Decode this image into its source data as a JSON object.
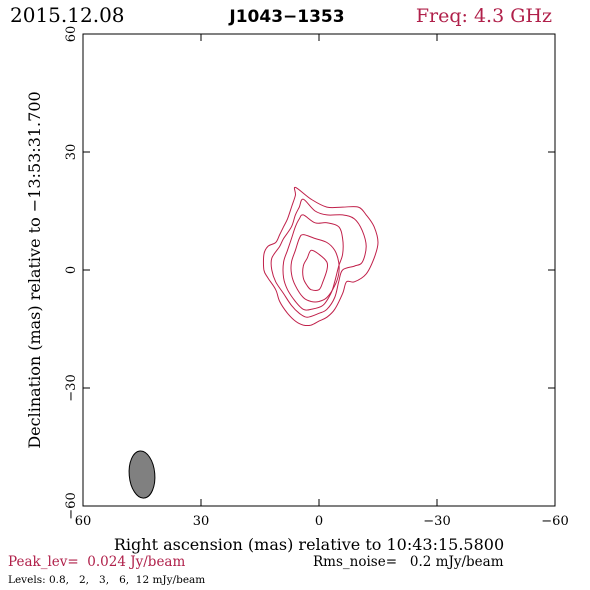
{
  "header": {
    "date": "2015.12.08",
    "source": "J1043−1353",
    "freq": "Freq: 4.3 GHz"
  },
  "footer": {
    "peak": "Peak_lev=  0.024 Jy/beam",
    "rms": "Rms_noise=   0.2 mJy/beam",
    "levels": "Levels: 0.8,   2,   3,   6,  12 mJy/beam"
  },
  "colors": {
    "contour": "#c0204a",
    "accent_text": "#b0204a",
    "beam_fill": "#808080",
    "axes": "#000000"
  },
  "chart_data": {
    "type": "contour",
    "xlabel": "Right ascension (mas) relative to 10:43:15.5800",
    "ylabel": "Declination (mas) relative to −13:53:31.700",
    "xlim": [
      60,
      -60
    ],
    "ylim": [
      -60,
      60
    ],
    "x_ticks": [
      60,
      30,
      0,
      -30,
      -60
    ],
    "y_ticks": [
      -60,
      -30,
      0,
      30,
      60
    ],
    "x_tick_labels": [
      "60",
      "30",
      "0",
      "−30",
      "−60"
    ],
    "y_tick_labels": [
      "−60",
      "−30",
      "0",
      "30",
      "60"
    ],
    "contour_levels_mJy": [
      0.8,
      2,
      3,
      6,
      12
    ],
    "peak_Jy_per_beam": 0.024,
    "rms_mJy_per_beam": 0.2,
    "contours": [
      {
        "level": 0.8,
        "points": [
          [
            6,
            21
          ],
          [
            2,
            18
          ],
          [
            -2,
            16
          ],
          [
            -6,
            16
          ],
          [
            -10,
            16
          ],
          [
            -12,
            14
          ],
          [
            -14,
            11
          ],
          [
            -15,
            7
          ],
          [
            -14,
            3
          ],
          [
            -12,
            -1
          ],
          [
            -9,
            -3
          ],
          [
            -7,
            -3
          ],
          [
            -6,
            -6
          ],
          [
            -4,
            -10
          ],
          [
            -2,
            -12
          ],
          [
            0,
            -13
          ],
          [
            2,
            -14
          ],
          [
            4,
            -14
          ],
          [
            6,
            -13
          ],
          [
            8,
            -11
          ],
          [
            10,
            -8
          ],
          [
            11,
            -5
          ],
          [
            13,
            -2
          ],
          [
            14,
            0
          ],
          [
            14,
            4
          ],
          [
            13,
            6
          ],
          [
            11,
            7
          ],
          [
            10,
            9
          ],
          [
            9,
            11
          ],
          [
            8,
            13
          ],
          [
            7,
            16
          ],
          [
            6,
            19
          ]
        ]
      },
      {
        "level": 2,
        "points": [
          [
            4,
            18
          ],
          [
            1,
            15
          ],
          [
            -2,
            14
          ],
          [
            -6,
            14
          ],
          [
            -9,
            13
          ],
          [
            -11,
            10
          ],
          [
            -12,
            6
          ],
          [
            -11,
            2
          ],
          [
            -9,
            1
          ],
          [
            -6,
            0
          ],
          [
            -5,
            -3
          ],
          [
            -4,
            -7
          ],
          [
            -2,
            -10
          ],
          [
            0,
            -11
          ],
          [
            3,
            -12
          ],
          [
            5,
            -11
          ],
          [
            7,
            -9
          ],
          [
            9,
            -6
          ],
          [
            11,
            -3
          ],
          [
            12,
            0
          ],
          [
            12,
            3
          ],
          [
            10,
            6
          ],
          [
            9,
            8
          ],
          [
            7,
            11
          ],
          [
            6,
            14
          ],
          [
            5,
            16
          ]
        ]
      },
      {
        "level": 3,
        "points": [
          [
            4,
            14
          ],
          [
            1,
            12
          ],
          [
            -2,
            12
          ],
          [
            -5,
            11
          ],
          [
            -6,
            8
          ],
          [
            -6,
            4
          ],
          [
            -5,
            1
          ],
          [
            -4,
            -3
          ],
          [
            -3,
            -6
          ],
          [
            -1,
            -9
          ],
          [
            2,
            -10
          ],
          [
            4,
            -10
          ],
          [
            6,
            -8
          ],
          [
            8,
            -5
          ],
          [
            9,
            -2
          ],
          [
            9,
            2
          ],
          [
            8,
            5
          ],
          [
            7,
            8
          ],
          [
            6,
            11
          ],
          [
            5,
            13
          ]
        ]
      },
      {
        "level": 6,
        "points": [
          [
            4,
            9
          ],
          [
            1,
            8
          ],
          [
            -2,
            7
          ],
          [
            -4,
            5
          ],
          [
            -5,
            2
          ],
          [
            -5,
            -1
          ],
          [
            -4,
            -4
          ],
          [
            -2,
            -7
          ],
          [
            0,
            -8
          ],
          [
            2,
            -8
          ],
          [
            4,
            -7
          ],
          [
            6,
            -4
          ],
          [
            7,
            -1
          ],
          [
            7,
            2
          ],
          [
            6,
            5
          ],
          [
            5,
            8
          ]
        ]
      },
      {
        "level": 12,
        "points": [
          [
            2,
            5
          ],
          [
            0,
            4
          ],
          [
            -2,
            2
          ],
          [
            -2,
            0
          ],
          [
            -1,
            -3
          ],
          [
            0,
            -5
          ],
          [
            2,
            -5
          ],
          [
            3,
            -4
          ],
          [
            4,
            -2
          ],
          [
            4,
            1
          ],
          [
            3,
            3
          ]
        ]
      }
    ],
    "beam": {
      "ra_mas": 45,
      "dec_mas": -52,
      "major_mas": 12,
      "minor_mas": 6.5,
      "pa_deg": 5
    }
  }
}
